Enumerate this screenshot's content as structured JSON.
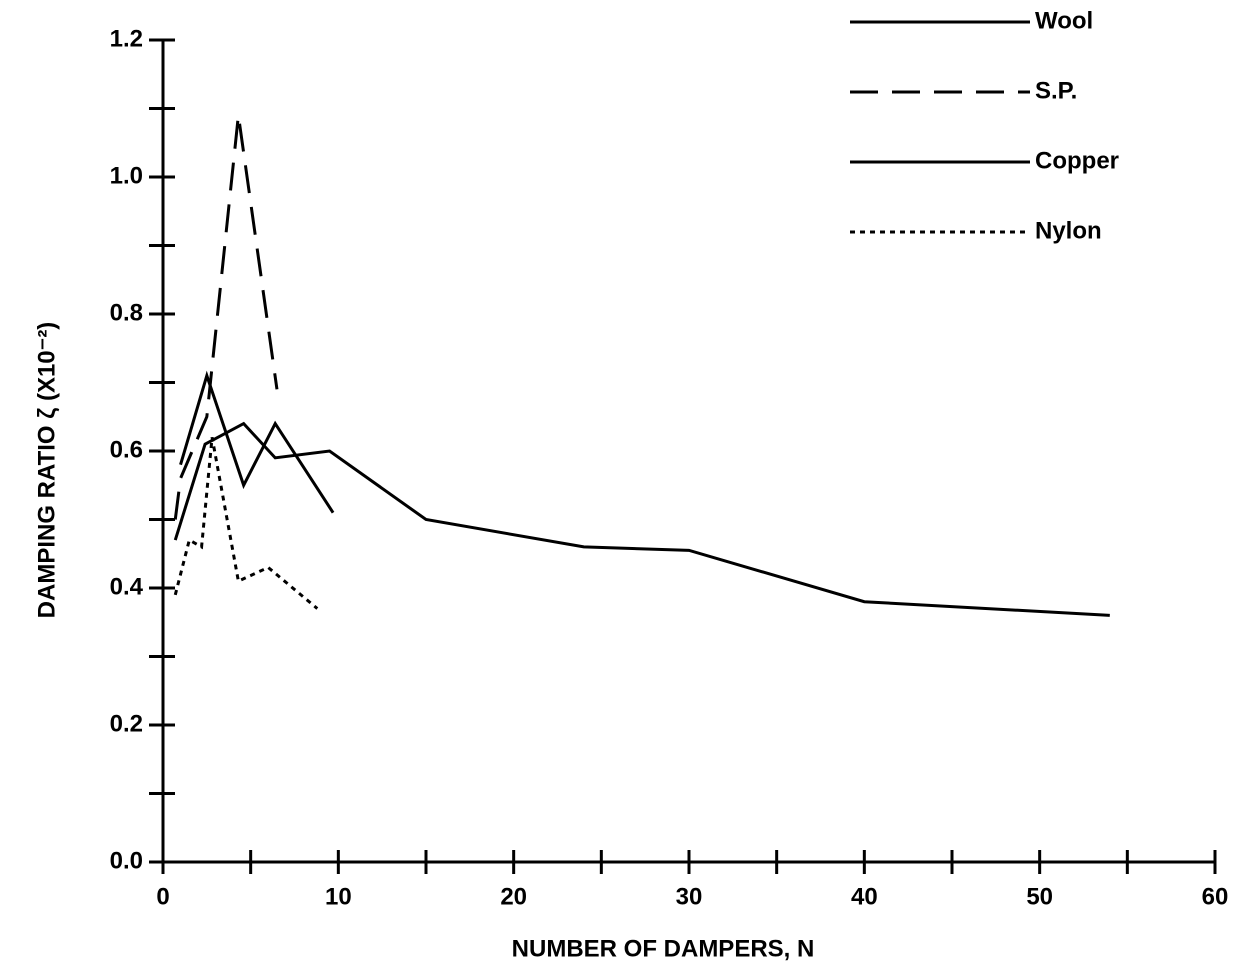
{
  "chart_data": {
    "type": "line",
    "xlabel": "NUMBER OF DAMPERS, N",
    "ylabel": "DAMPING RATIO ζ (X10⁻²)",
    "xlim": [
      0,
      60
    ],
    "xticks": [
      0,
      10,
      20,
      30,
      40,
      50,
      60
    ],
    "xminorticks": [
      5,
      15,
      25,
      35,
      45,
      55
    ],
    "ylim": [
      0,
      1.2
    ],
    "yticks": [
      {
        "value": 0,
        "label": "0.0"
      },
      0.2,
      0.4,
      0.6,
      0.8,
      {
        "value": 1,
        "label": "1.0"
      },
      1.2
    ],
    "yminorticks": [
      0.1,
      0.3,
      0.5,
      0.7,
      0.9,
      1.1
    ],
    "series": [
      {
        "name": "Wool",
        "color": "#000000",
        "dash": "solid",
        "x": [
          0.7,
          2.4,
          4.6,
          6.4,
          9.5,
          15,
          24,
          30,
          40,
          54
        ],
        "values": [
          0.47,
          0.61,
          0.64,
          0.59,
          0.6,
          0.5,
          0.46,
          0.455,
          0.38,
          0.36
        ]
      },
      {
        "name": "S.P.",
        "color": "#000000",
        "dash": "dashed",
        "x": [
          0.7,
          1,
          2.5,
          4.3,
          6.5
        ],
        "values": [
          0.5,
          0.56,
          0.65,
          1.09,
          0.69
        ]
      },
      {
        "name": "Copper",
        "color": "#000000",
        "dash": "solid",
        "x": [
          1,
          2.5,
          4.6,
          6.4,
          9.7
        ],
        "values": [
          0.58,
          0.71,
          0.55,
          0.64,
          0.51
        ]
      },
      {
        "name": "Nylon",
        "color": "#000000",
        "dash": "dotted",
        "x": [
          0.7,
          1.5,
          2.2,
          2.8,
          4.3,
          6,
          8.8
        ],
        "values": [
          0.39,
          0.47,
          0.46,
          0.62,
          0.41,
          0.43,
          0.37
        ]
      }
    ]
  }
}
